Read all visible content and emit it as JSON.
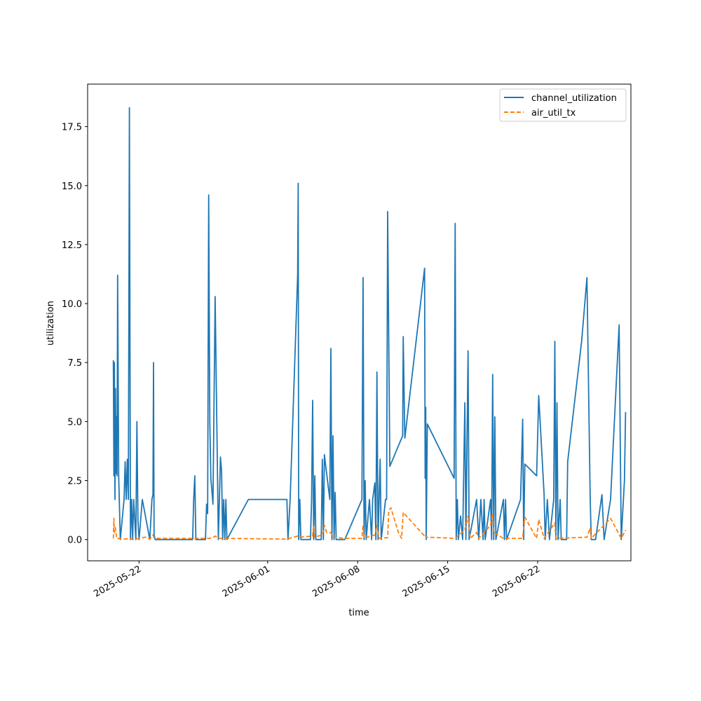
{
  "chart_data": {
    "type": "line",
    "title": "",
    "xlabel": "time",
    "ylabel": "utilization",
    "x_ticks": [
      "2025-05-22",
      "2025-06-01",
      "2025-06-08",
      "2025-06-15",
      "2025-06-22"
    ],
    "y_ticks": [
      "0.0",
      "2.5",
      "5.0",
      "7.5",
      "10.0",
      "12.5",
      "15.0",
      "17.5"
    ],
    "xlim": [
      "2025-05-18T00:00",
      "2025-06-29T06:00"
    ],
    "ylim": [
      -0.9,
      19.3
    ],
    "grid": false,
    "legend_position": "top-right",
    "series": [
      {
        "name": "channel_utilization",
        "color": "#1f77b4",
        "style": "solid",
        "points": [
          [
            "2025-05-20T00:00",
            7.6
          ],
          [
            "2025-05-20T01:00",
            2.7
          ],
          [
            "2025-05-20T02:00",
            7.5
          ],
          [
            "2025-05-20T03:00",
            1.7
          ],
          [
            "2025-05-20T04:00",
            6.4
          ],
          [
            "2025-05-20T05:00",
            2.8
          ],
          [
            "2025-05-20T06:00",
            5.2
          ],
          [
            "2025-05-20T07:00",
            2.7
          ],
          [
            "2025-05-20T08:00",
            11.2
          ],
          [
            "2025-05-20T10:00",
            2.7
          ],
          [
            "2025-05-20T13:00",
            0.0
          ],
          [
            "2025-05-20T20:00",
            1.7
          ],
          [
            "2025-05-20T22:00",
            3.3
          ],
          [
            "2025-05-21T00:00",
            1.7
          ],
          [
            "2025-05-21T02:00",
            3.4
          ],
          [
            "2025-05-21T04:00",
            1.7
          ],
          [
            "2025-05-21T06:00",
            18.3
          ],
          [
            "2025-05-21T08:00",
            0.0
          ],
          [
            "2025-05-21T10:00",
            1.7
          ],
          [
            "2025-05-21T12:00",
            0.0
          ],
          [
            "2025-05-21T14:00",
            1.7
          ],
          [
            "2025-05-21T18:00",
            0.0
          ],
          [
            "2025-05-21T20:00",
            5.0
          ],
          [
            "2025-05-21T22:00",
            0.8
          ],
          [
            "2025-05-22T00:00",
            0.0
          ],
          [
            "2025-05-22T06:00",
            1.7
          ],
          [
            "2025-05-22T20:00",
            0.0
          ],
          [
            "2025-05-23T00:00",
            1.7
          ],
          [
            "2025-05-23T02:00",
            1.9
          ],
          [
            "2025-05-23T03:00",
            7.5
          ],
          [
            "2025-05-23T04:00",
            0.2
          ],
          [
            "2025-05-23T06:00",
            0.0
          ],
          [
            "2025-05-26T04:00",
            0.0
          ],
          [
            "2025-05-26T06:00",
            1.7
          ],
          [
            "2025-05-26T08:00",
            2.7
          ],
          [
            "2025-05-26T10:00",
            0.0
          ],
          [
            "2025-05-27T04:00",
            0.0
          ],
          [
            "2025-05-27T06:00",
            1.5
          ],
          [
            "2025-05-27T08:00",
            1.1
          ],
          [
            "2025-05-27T10:00",
            14.6
          ],
          [
            "2025-05-27T12:00",
            5.0
          ],
          [
            "2025-05-27T14:00",
            2.6
          ],
          [
            "2025-05-27T18:00",
            1.5
          ],
          [
            "2025-05-27T22:00",
            10.3
          ],
          [
            "2025-05-28T04:00",
            0.0
          ],
          [
            "2025-05-28T08:00",
            3.5
          ],
          [
            "2025-05-28T10:00",
            2.9
          ],
          [
            "2025-05-28T12:00",
            0.0
          ],
          [
            "2025-05-28T14:00",
            1.7
          ],
          [
            "2025-05-28T16:00",
            0.0
          ],
          [
            "2025-05-28T18:00",
            1.7
          ],
          [
            "2025-05-28T20:00",
            0.0
          ],
          [
            "2025-05-30T12:00",
            1.7
          ],
          [
            "2025-06-02T12:00",
            1.7
          ],
          [
            "2025-06-02T14:00",
            0.0
          ],
          [
            "2025-06-02T18:00",
            1.7
          ],
          [
            "2025-06-03T08:00",
            11.2
          ],
          [
            "2025-06-03T09:00",
            15.1
          ],
          [
            "2025-06-03T10:00",
            0.0
          ],
          [
            "2025-06-03T12:00",
            1.7
          ],
          [
            "2025-06-03T14:00",
            0.0
          ],
          [
            "2025-06-04T08:00",
            0.0
          ],
          [
            "2025-06-04T10:00",
            1.7
          ],
          [
            "2025-06-04T12:00",
            5.9
          ],
          [
            "2025-06-04T14:00",
            0.0
          ],
          [
            "2025-06-04T16:00",
            2.7
          ],
          [
            "2025-06-04T18:00",
            0.0
          ],
          [
            "2025-06-05T04:00",
            0.0
          ],
          [
            "2025-06-05T06:00",
            3.4
          ],
          [
            "2025-06-05T08:00",
            0.0
          ],
          [
            "2025-06-05T10:00",
            3.6
          ],
          [
            "2025-06-05T12:00",
            3.2
          ],
          [
            "2025-06-05T20:00",
            1.7
          ],
          [
            "2025-06-05T22:00",
            8.1
          ],
          [
            "2025-06-06T00:00",
            0.0
          ],
          [
            "2025-06-06T02:00",
            4.4
          ],
          [
            "2025-06-06T04:00",
            0.0
          ],
          [
            "2025-06-06T06:00",
            2.0
          ],
          [
            "2025-06-06T08:00",
            0.0
          ],
          [
            "2025-06-07T00:00",
            0.0
          ],
          [
            "2025-06-08T08:00",
            1.7
          ],
          [
            "2025-06-08T10:00",
            11.1
          ],
          [
            "2025-06-08T12:00",
            0.0
          ],
          [
            "2025-06-08T14:00",
            2.5
          ],
          [
            "2025-06-08T16:00",
            0.0
          ],
          [
            "2025-06-08T22:00",
            1.7
          ],
          [
            "2025-06-09T02:00",
            0.0
          ],
          [
            "2025-06-09T04:00",
            1.7
          ],
          [
            "2025-06-09T08:00",
            2.4
          ],
          [
            "2025-06-09T10:00",
            0.0
          ],
          [
            "2025-06-09T12:00",
            7.1
          ],
          [
            "2025-06-09T14:00",
            0.0
          ],
          [
            "2025-06-09T18:00",
            3.4
          ],
          [
            "2025-06-09T20:00",
            0.0
          ],
          [
            "2025-06-10T04:00",
            1.7
          ],
          [
            "2025-06-10T06:00",
            1.7
          ],
          [
            "2025-06-10T08:00",
            13.9
          ],
          [
            "2025-06-10T12:00",
            3.1
          ],
          [
            "2025-06-11T12:00",
            4.4
          ],
          [
            "2025-06-11T13:00",
            8.6
          ],
          [
            "2025-06-11T16:00",
            4.3
          ],
          [
            "2025-06-13T05:00",
            11.5
          ],
          [
            "2025-06-13T06:00",
            2.6
          ],
          [
            "2025-06-13T07:00",
            5.6
          ],
          [
            "2025-06-13T08:00",
            0.0
          ],
          [
            "2025-06-13T10:00",
            4.9
          ],
          [
            "2025-06-15T12:00",
            2.6
          ],
          [
            "2025-06-15T14:00",
            13.4
          ],
          [
            "2025-06-15T16:00",
            0.0
          ],
          [
            "2025-06-15T18:00",
            1.7
          ],
          [
            "2025-06-15T20:00",
            0.0
          ],
          [
            "2025-06-16T00:00",
            1.0
          ],
          [
            "2025-06-16T04:00",
            0.0
          ],
          [
            "2025-06-16T08:00",
            5.8
          ],
          [
            "2025-06-16T10:00",
            0.0
          ],
          [
            "2025-06-16T14:00",
            8.0
          ],
          [
            "2025-06-16T16:00",
            0.0
          ],
          [
            "2025-06-17T06:00",
            1.7
          ],
          [
            "2025-06-17T10:00",
            0.0
          ],
          [
            "2025-06-17T14:00",
            1.7
          ],
          [
            "2025-06-17T18:00",
            0.0
          ],
          [
            "2025-06-17T20:00",
            1.7
          ],
          [
            "2025-06-17T22:00",
            0.0
          ],
          [
            "2025-06-18T08:00",
            1.7
          ],
          [
            "2025-06-18T10:00",
            0.0
          ],
          [
            "2025-06-18T12:00",
            7.0
          ],
          [
            "2025-06-18T14:00",
            0.0
          ],
          [
            "2025-06-18T16:00",
            5.2
          ],
          [
            "2025-06-18T18:00",
            0.0
          ],
          [
            "2025-06-19T08:00",
            1.7
          ],
          [
            "2025-06-19T10:00",
            0.0
          ],
          [
            "2025-06-19T12:00",
            1.7
          ],
          [
            "2025-06-19T14:00",
            0.0
          ],
          [
            "2025-06-20T16:00",
            1.7
          ],
          [
            "2025-06-20T20:00",
            5.1
          ],
          [
            "2025-06-20T22:00",
            0.0
          ],
          [
            "2025-06-21T00:00",
            3.2
          ],
          [
            "2025-06-21T22:00",
            2.7
          ],
          [
            "2025-06-22T02:00",
            6.1
          ],
          [
            "2025-06-22T12:00",
            1.9
          ],
          [
            "2025-06-22T14:00",
            0.0
          ],
          [
            "2025-06-22T18:00",
            1.7
          ],
          [
            "2025-06-22T22:00",
            0.0
          ],
          [
            "2025-06-23T06:00",
            1.7
          ],
          [
            "2025-06-23T08:00",
            8.4
          ],
          [
            "2025-06-23T10:00",
            0.0
          ],
          [
            "2025-06-23T12:00",
            5.8
          ],
          [
            "2025-06-23T14:00",
            0.0
          ],
          [
            "2025-06-23T18:00",
            1.7
          ],
          [
            "2025-06-23T20:00",
            0.0
          ],
          [
            "2025-06-24T06:00",
            0.0
          ],
          [
            "2025-06-24T08:00",
            3.3
          ],
          [
            "2025-06-25T10:00",
            8.4
          ],
          [
            "2025-06-25T20:00",
            11.1
          ],
          [
            "2025-06-26T02:00",
            1.8
          ],
          [
            "2025-06-26T04:00",
            0.0
          ],
          [
            "2025-06-26T12:00",
            0.0
          ],
          [
            "2025-06-27T00:00",
            1.9
          ],
          [
            "2025-06-27T04:00",
            0.0
          ],
          [
            "2025-06-27T16:00",
            1.7
          ],
          [
            "2025-06-28T08:00",
            9.1
          ],
          [
            "2025-06-28T12:00",
            0.0
          ],
          [
            "2025-06-28T18:00",
            2.5
          ],
          [
            "2025-06-28T20:00",
            5.4
          ]
        ]
      },
      {
        "name": "air_util_tx",
        "color": "#ff7f0e",
        "style": "dashed",
        "points": [
          [
            "2025-05-20T00:00",
            0.05
          ],
          [
            "2025-05-20T01:00",
            0.9
          ],
          [
            "2025-05-20T02:00",
            0.3
          ],
          [
            "2025-05-20T04:00",
            0.5
          ],
          [
            "2025-05-20T06:00",
            0.05
          ],
          [
            "2025-05-21T00:00",
            0.02
          ],
          [
            "2025-05-21T06:00",
            0.05
          ],
          [
            "2025-05-21T12:00",
            0.0
          ],
          [
            "2025-05-22T00:00",
            0.05
          ],
          [
            "2025-05-22T12:00",
            0.1
          ],
          [
            "2025-05-22T20:00",
            0.02
          ],
          [
            "2025-05-23T02:00",
            0.2
          ],
          [
            "2025-05-23T04:00",
            0.08
          ],
          [
            "2025-05-23T12:00",
            0.05
          ],
          [
            "2025-05-27T10:00",
            0.05
          ],
          [
            "2025-05-27T18:00",
            0.08
          ],
          [
            "2025-05-27T22:00",
            0.15
          ],
          [
            "2025-05-28T06:00",
            0.05
          ],
          [
            "2025-06-02T12:00",
            0.02
          ],
          [
            "2025-06-03T08:00",
            0.15
          ],
          [
            "2025-06-03T12:00",
            0.1
          ],
          [
            "2025-06-04T12:00",
            0.15
          ],
          [
            "2025-06-04T14:00",
            0.6
          ],
          [
            "2025-06-04T16:00",
            0.1
          ],
          [
            "2025-06-05T06:00",
            0.2
          ],
          [
            "2025-06-05T08:00",
            0.4
          ],
          [
            "2025-06-05T10:00",
            0.6
          ],
          [
            "2025-06-05T14:00",
            0.3
          ],
          [
            "2025-06-05T22:00",
            0.3
          ],
          [
            "2025-06-06T02:00",
            0.1
          ],
          [
            "2025-06-07T00:00",
            0.05
          ],
          [
            "2025-06-08T08:00",
            0.05
          ],
          [
            "2025-06-08T10:00",
            0.6
          ],
          [
            "2025-06-08T12:00",
            0.05
          ],
          [
            "2025-06-09T08:00",
            0.2
          ],
          [
            "2025-06-09T12:00",
            0.6
          ],
          [
            "2025-06-09T16:00",
            0.05
          ],
          [
            "2025-06-10T08:00",
            0.08
          ],
          [
            "2025-06-10T10:00",
            1.2
          ],
          [
            "2025-06-10T14:00",
            1.35
          ],
          [
            "2025-06-11T04:00",
            0.3
          ],
          [
            "2025-06-11T10:00",
            0.05
          ],
          [
            "2025-06-11T13:00",
            1.15
          ],
          [
            "2025-06-13T05:00",
            0.15
          ],
          [
            "2025-06-13T06:00",
            0.2
          ],
          [
            "2025-06-13T08:00",
            0.1
          ],
          [
            "2025-06-15T14:00",
            0.05
          ],
          [
            "2025-06-16T08:00",
            0.4
          ],
          [
            "2025-06-16T14:00",
            1.0
          ],
          [
            "2025-06-16T18:00",
            0.05
          ],
          [
            "2025-06-17T06:00",
            0.3
          ],
          [
            "2025-06-17T10:00",
            0.05
          ],
          [
            "2025-06-18T08:00",
            0.6
          ],
          [
            "2025-06-18T12:00",
            1.1
          ],
          [
            "2025-06-18T14:00",
            0.3
          ],
          [
            "2025-06-19T08:00",
            0.05
          ],
          [
            "2025-06-20T20:00",
            0.05
          ],
          [
            "2025-06-21T00:00",
            0.95
          ],
          [
            "2025-06-21T22:00",
            0.05
          ],
          [
            "2025-06-22T02:00",
            0.85
          ],
          [
            "2025-06-22T12:00",
            0.05
          ],
          [
            "2025-06-23T08:00",
            0.7
          ],
          [
            "2025-06-23T10:00",
            0.05
          ],
          [
            "2025-06-25T20:00",
            0.1
          ],
          [
            "2025-06-26T02:00",
            0.5
          ],
          [
            "2025-06-26T04:00",
            0.05
          ],
          [
            "2025-06-27T16:00",
            0.9
          ],
          [
            "2025-06-28T12:00",
            0.05
          ],
          [
            "2025-06-28T20:00",
            0.4
          ]
        ]
      }
    ]
  }
}
